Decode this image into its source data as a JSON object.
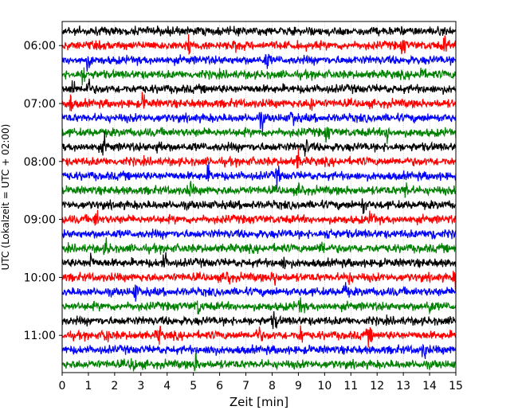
{
  "chart_data": {
    "type": "line",
    "title": "",
    "xlabel": "Zeit  [min]",
    "ylabel": "UTC (Lokalzeit = UTC + 02:00)",
    "xlim": [
      0,
      15
    ],
    "x_ticks": [
      0,
      1,
      2,
      3,
      4,
      5,
      6,
      7,
      8,
      9,
      10,
      11,
      12,
      13,
      14,
      15
    ],
    "y_tick_labels": [
      "06:00",
      "07:00",
      "08:00",
      "09:00",
      "10:00",
      "11:00"
    ],
    "grid": true,
    "trace_minutes": 15,
    "trace_start": "05:45",
    "trace_count": 24,
    "trace_color_cycle": [
      "#000000",
      "#ff0000",
      "#0000ff",
      "#008000"
    ],
    "series": [
      {
        "start": "05:45",
        "events_min": [
          4.1
        ]
      },
      {
        "start": "06:00",
        "events_min": [
          4.8,
          6.6,
          13.0,
          14.6
        ]
      },
      {
        "start": "06:15",
        "events_min": [
          1.0,
          7.8
        ]
      },
      {
        "start": "06:30",
        "events_min": [
          0.8,
          13.7
        ]
      },
      {
        "start": "06:45",
        "events_min": [
          0.4,
          1.0
        ]
      },
      {
        "start": "07:00",
        "events_min": [
          0.3,
          3.1,
          9.5
        ]
      },
      {
        "start": "07:15",
        "events_min": [
          7.6,
          8.8
        ]
      },
      {
        "start": "07:30",
        "events_min": [
          10.1,
          12.4
        ]
      },
      {
        "start": "07:45",
        "events_min": [
          1.6,
          3.7,
          9.3
        ]
      },
      {
        "start": "08:00",
        "events_min": [
          9.0
        ]
      },
      {
        "start": "08:15",
        "events_min": [
          5.6,
          8.2
        ]
      },
      {
        "start": "08:30",
        "events_min": [
          4.9,
          9.1,
          13.1
        ]
      },
      {
        "start": "08:45",
        "events_min": [
          11.5
        ]
      },
      {
        "start": "09:00",
        "events_min": [
          1.3,
          11.8
        ]
      },
      {
        "start": "09:15",
        "events_min": [
          10.2,
          14.1
        ]
      },
      {
        "start": "09:30",
        "events_min": [
          1.7,
          9.9
        ]
      },
      {
        "start": "09:45",
        "events_min": [
          1.1,
          3.9,
          8.5
        ]
      },
      {
        "start": "10:00",
        "events_min": [
          6.3,
          8.1,
          10.9,
          15.0
        ]
      },
      {
        "start": "10:15",
        "events_min": [
          2.8,
          10.8
        ]
      },
      {
        "start": "10:30",
        "events_min": [
          5.2,
          9.1,
          14.0
        ]
      },
      {
        "start": "10:45",
        "events_min": [
          8.1
        ]
      },
      {
        "start": "11:00",
        "events_min": [
          1.7,
          3.7,
          7.5,
          9.1,
          11.7
        ]
      },
      {
        "start": "11:15",
        "events_min": [
          5.7,
          13.8
        ]
      },
      {
        "start": "11:30",
        "events_min": [
          2.7,
          5.1
        ]
      }
    ]
  }
}
